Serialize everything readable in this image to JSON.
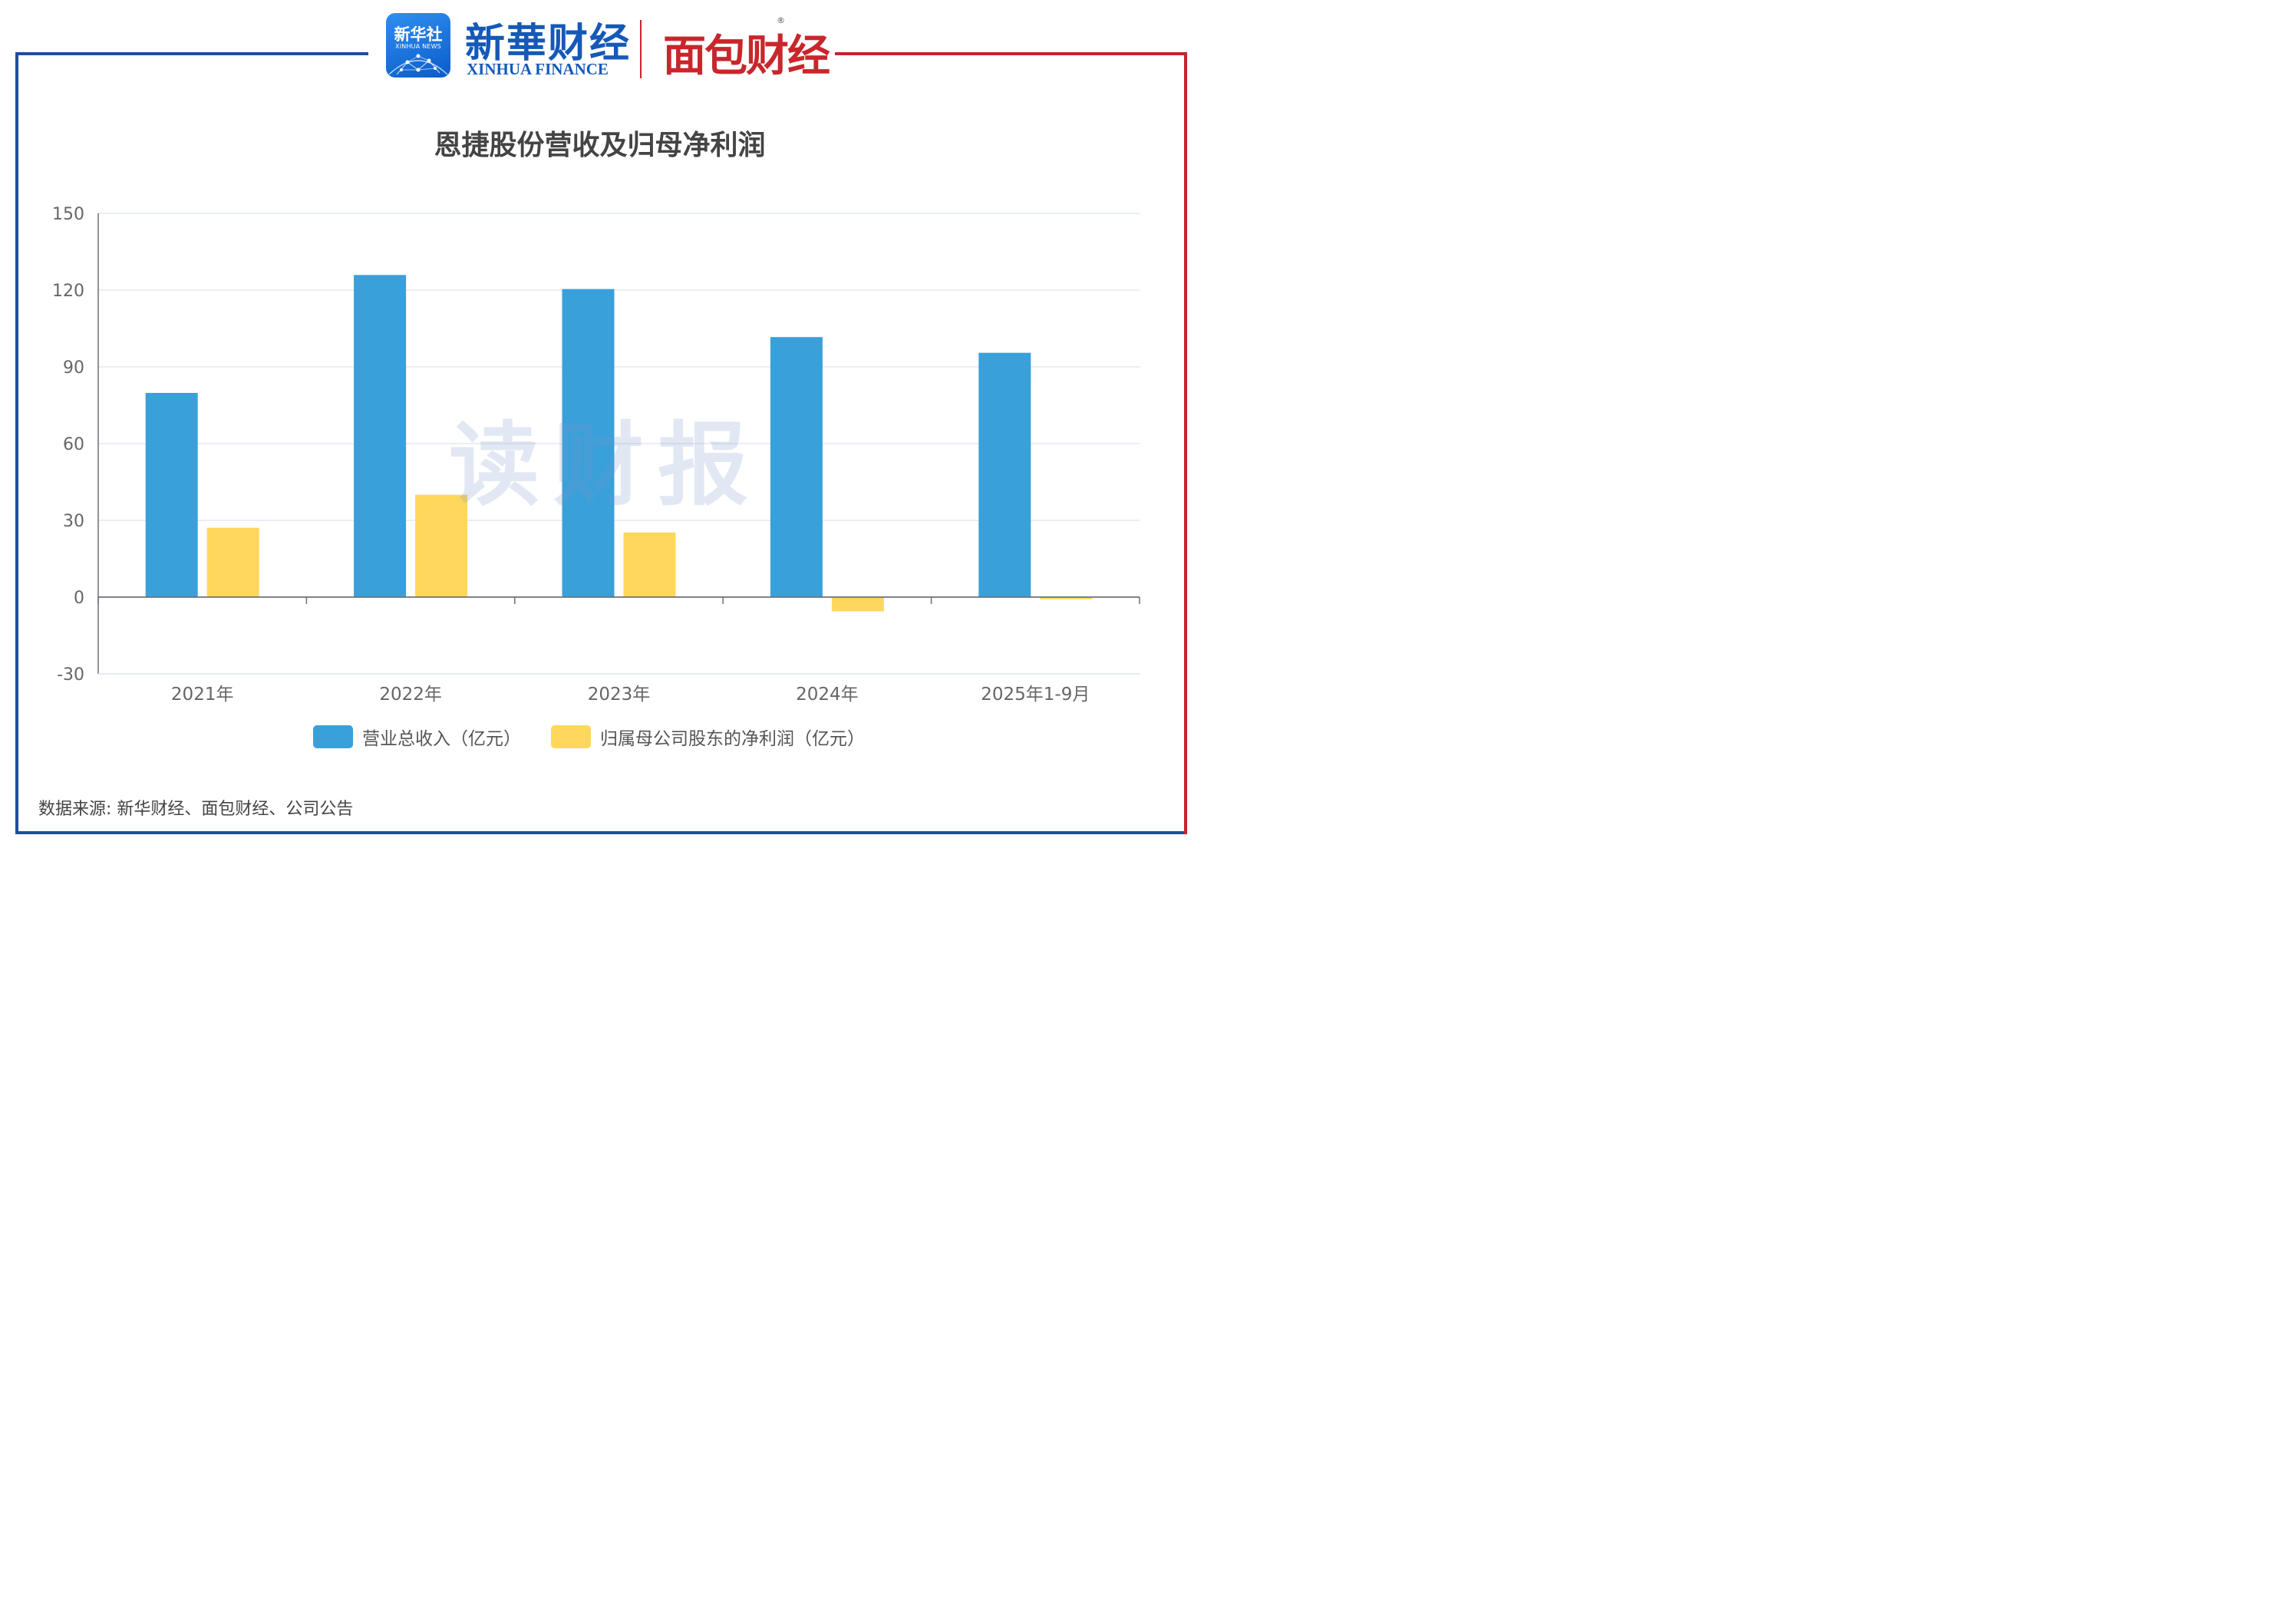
{
  "branding": {
    "badge_cn": "新华社",
    "badge_en": "XINHUA NEWS",
    "xinhua_finance_cn": "新華财经",
    "xinhua_finance_en": "XINHUA FINANCE",
    "mianbao_cn": "面包财经",
    "registered_mark": "®"
  },
  "colors": {
    "frame_blue": "#1f4f9a",
    "frame_red": "#c0262c",
    "revenue": "#3aa0da",
    "net_profit": "#ffd75c"
  },
  "watermark": "读财报",
  "chart_data": {
    "type": "bar",
    "title": "恩捷股份营收及归母净利润",
    "categories": [
      "2021年",
      "2022年",
      "2023年",
      "2024年",
      "2025年1-9月"
    ],
    "series": [
      {
        "name": "营业总收入（亿元）",
        "values": [
          79.82,
          125.91,
          120.42,
          101.64,
          95.5
        ],
        "color": "#3aa0da"
      },
      {
        "name": "归属母公司股东的净利润（亿元）",
        "values": [
          27.12,
          40.0,
          25.27,
          -5.56,
          -0.8
        ],
        "color": "#ffd75c"
      }
    ],
    "ylim": [
      -30,
      150
    ],
    "yticks": [
      "150",
      "120",
      "90",
      "60",
      "30",
      "0",
      "-30"
    ],
    "ytick_values": [
      150,
      120,
      90,
      60,
      30,
      0,
      -30
    ],
    "grid": true,
    "legend": "bottom"
  },
  "source": "数据来源: 新华财经、面包财经、公司公告"
}
